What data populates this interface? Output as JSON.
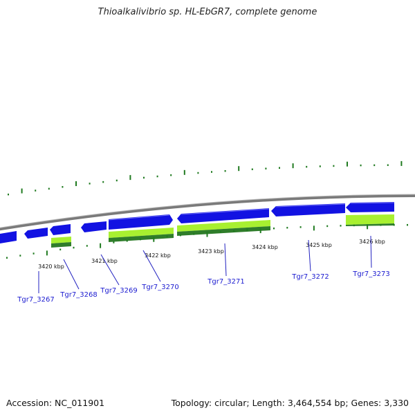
{
  "title": "Thioalkalivibrio sp. HL-EbGR7, complete genome",
  "footer": {
    "accession": "Accession: NC_011901",
    "summary": "Topology: circular; Length: 3,464,554 bp; Genes: 3,330"
  },
  "colors": {
    "gene_forward": "#1010e0",
    "gene_reverse": "#1010e0",
    "cds_light": "#a8f030",
    "cds_dark": "#2f7d2a",
    "backbone": "#808080",
    "ticks": "#1f7a1f",
    "label_line": "#2020c0"
  },
  "kbp_labels": [
    "3420 kbp",
    "3421 kbp",
    "3422 kbp",
    "3423 kbp",
    "3424 kbp",
    "3425 kbp",
    "3426 kbp"
  ],
  "locus_tags": [
    "Tgr7_3267",
    "Tgr7_3268",
    "Tgr7_3269",
    "Tgr7_3270",
    "Tgr7_3271",
    "Tgr7_3272",
    "Tgr7_3273"
  ]
}
